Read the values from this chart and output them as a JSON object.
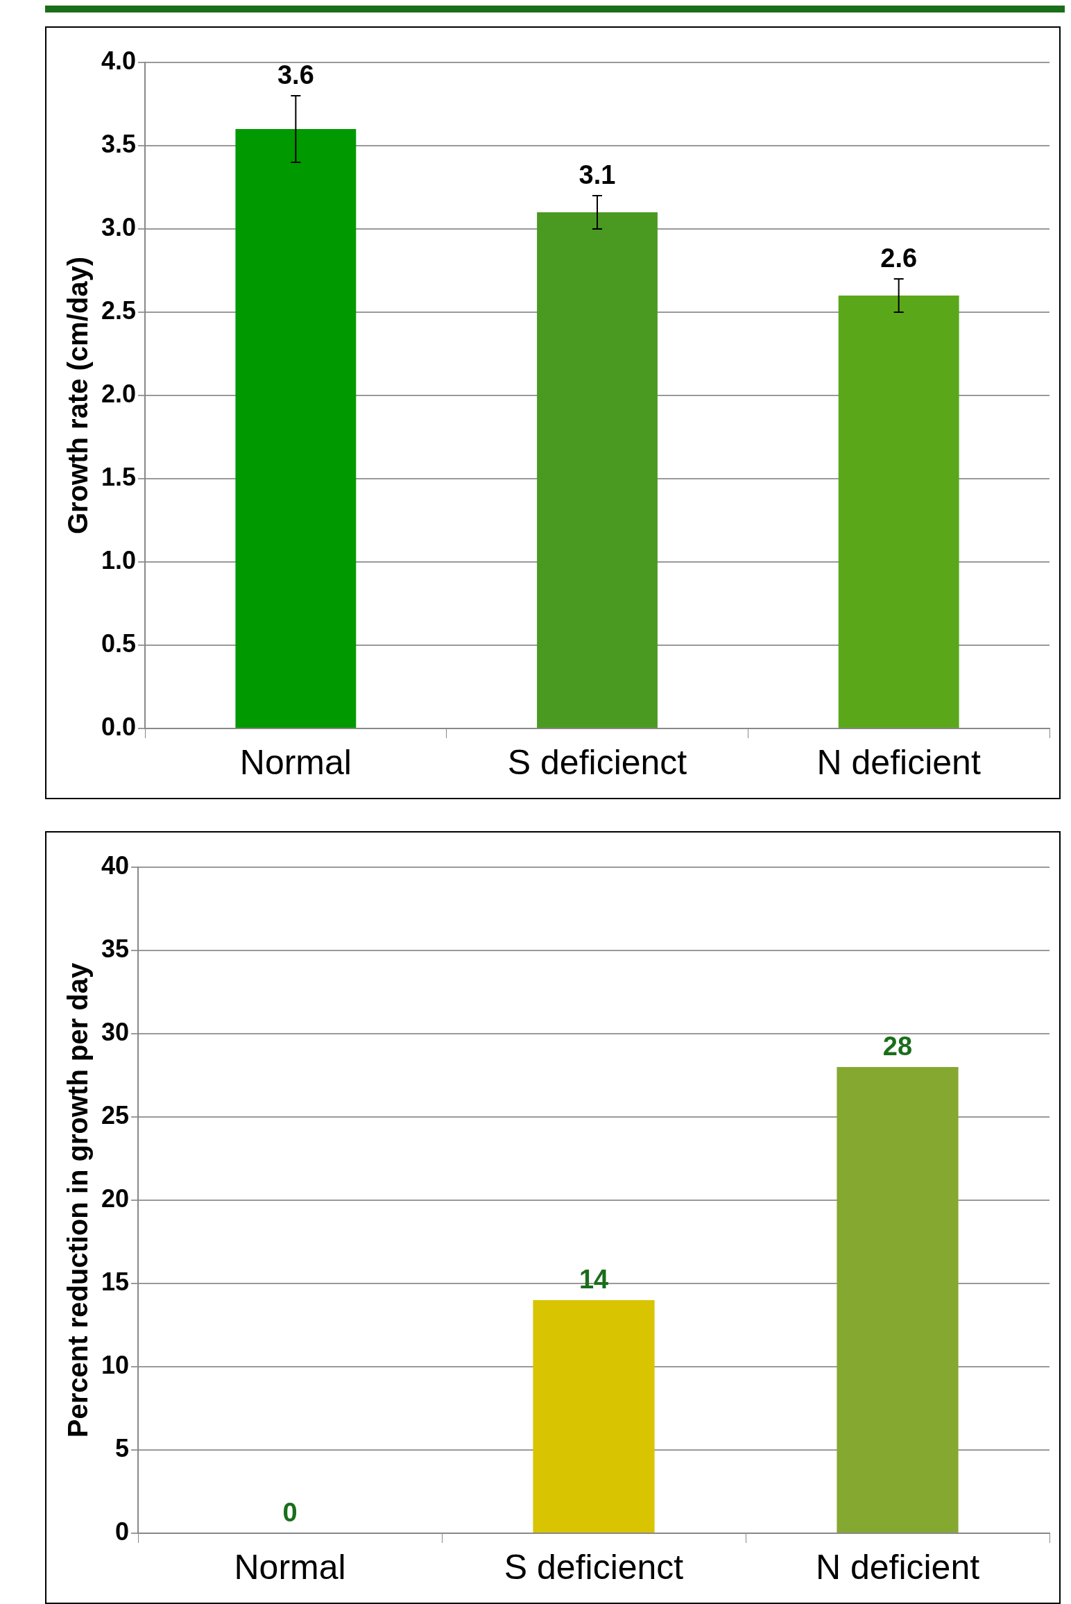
{
  "chart_data": [
    {
      "type": "bar",
      "ylabel": "Growth rate (cm/day)",
      "categories": [
        "Normal",
        "S deficienct",
        "N deficient"
      ],
      "values": [
        3.6,
        3.1,
        2.6
      ],
      "errors": [
        0.2,
        0.1,
        0.1
      ],
      "colors": [
        "#009900",
        "#4a9a22",
        "#5aa81a"
      ],
      "ylim": [
        0,
        4
      ],
      "yticks": [
        {
          "value": 0,
          "label": "0.0"
        },
        {
          "value": 0.5,
          "label": "0.5"
        },
        {
          "value": 1,
          "label": "1.0"
        },
        {
          "value": 1.5,
          "label": "1.5"
        },
        {
          "value": 2,
          "label": "2.0"
        },
        {
          "value": 2.5,
          "label": "2.5"
        },
        {
          "value": 3,
          "label": "3.0"
        },
        {
          "value": 3.5,
          "label": "3.5"
        },
        {
          "value": 4,
          "label": "4.0"
        }
      ],
      "grid": "y",
      "data_labels": true
    },
    {
      "type": "bar",
      "ylabel": "Percent reduction in growth per day",
      "categories": [
        "Normal",
        "S deficienct",
        "N deficient"
      ],
      "values": [
        0,
        14,
        28
      ],
      "colors": [
        "#009900",
        "#d8c400",
        "#85a830"
      ],
      "ylim": [
        0,
        40
      ],
      "yticks": [
        0,
        5,
        10,
        15,
        20,
        25,
        30,
        35,
        40
      ],
      "grid": "y",
      "data_labels": true
    }
  ]
}
